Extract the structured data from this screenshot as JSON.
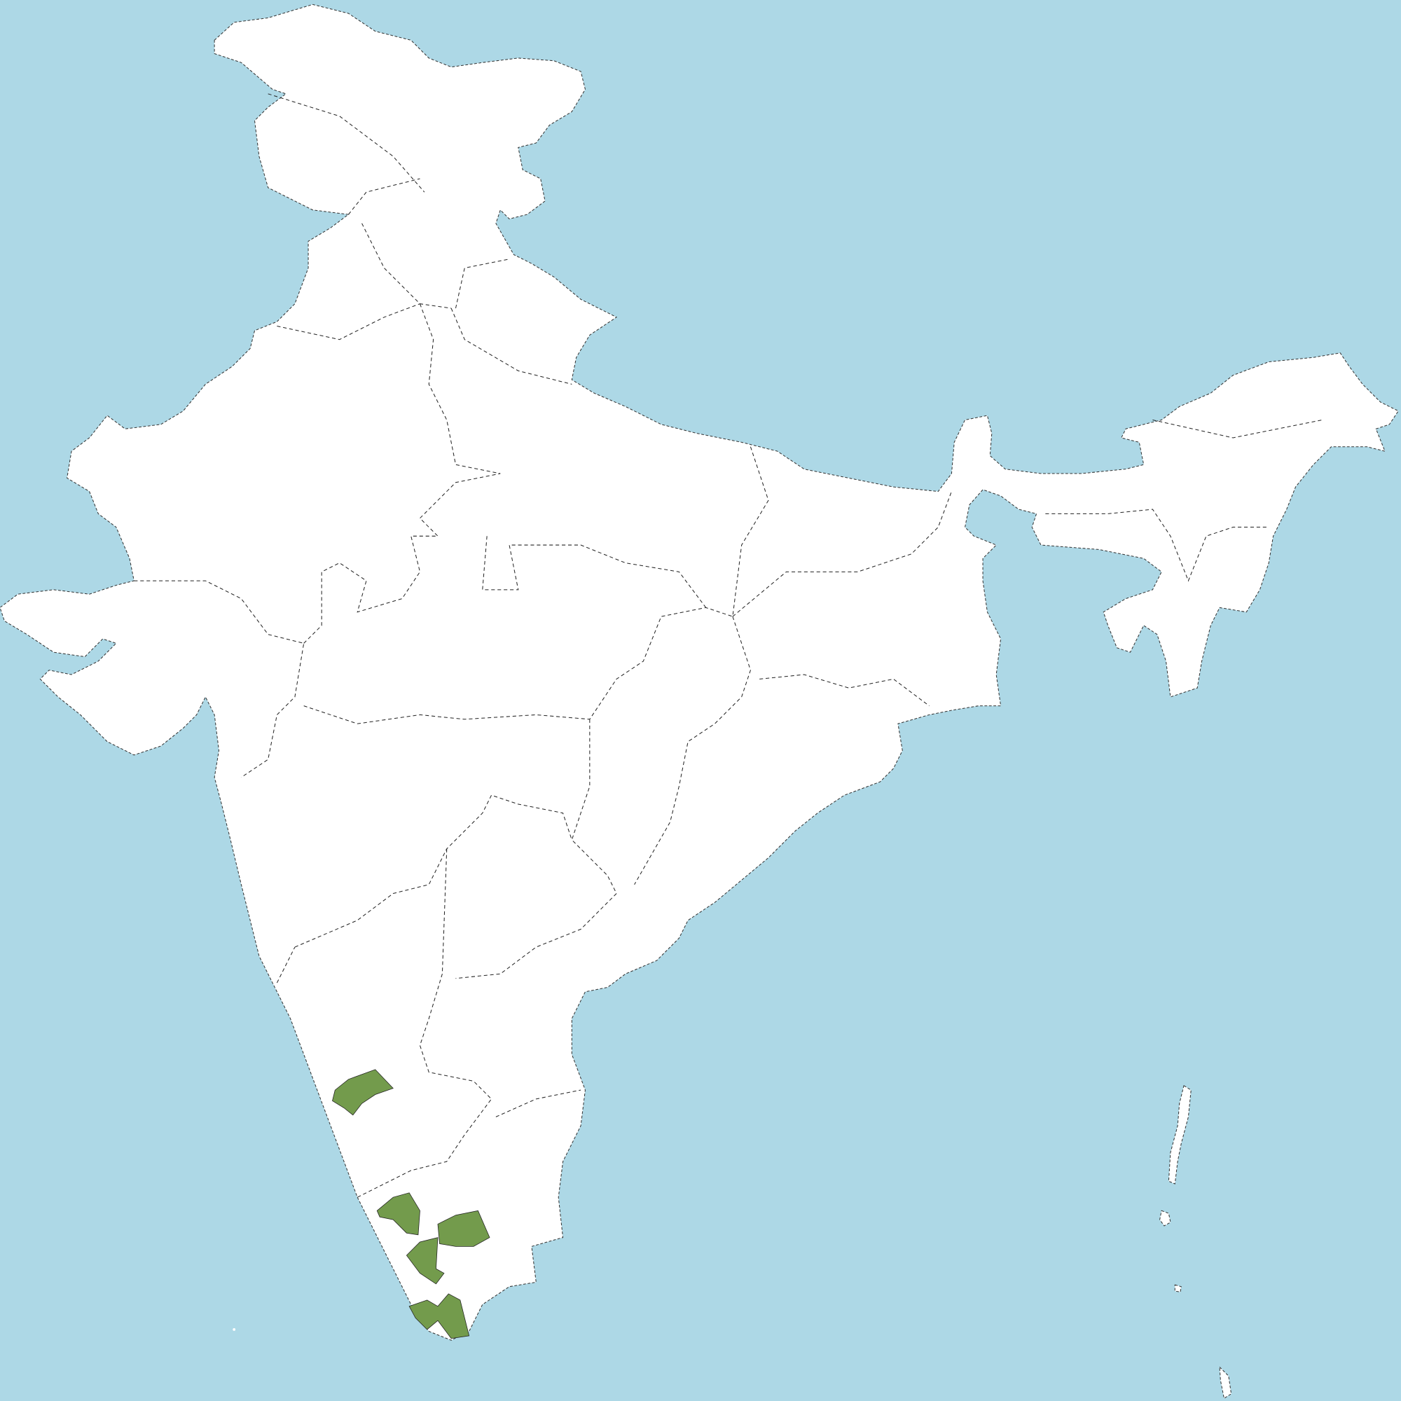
{
  "map": {
    "region": "India",
    "colors": {
      "water": "#add8e6",
      "land": "#ffffff",
      "highlight": "#739b4c"
    },
    "highlighted_region_count": 5
  }
}
